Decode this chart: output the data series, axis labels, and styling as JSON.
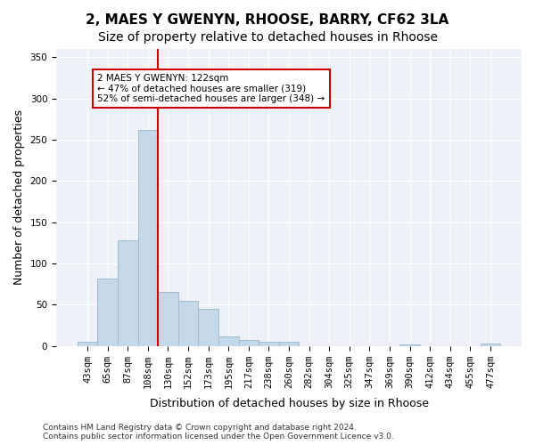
{
  "title1": "2, MAES Y GWENYN, RHOOSE, BARRY, CF62 3LA",
  "title2": "Size of property relative to detached houses in Rhoose",
  "xlabel": "Distribution of detached houses by size in Rhoose",
  "ylabel": "Number of detached properties",
  "categories": [
    "43sqm",
    "65sqm",
    "87sqm",
    "108sqm",
    "130sqm",
    "152sqm",
    "173sqm",
    "195sqm",
    "217sqm",
    "238sqm",
    "260sqm",
    "282sqm",
    "304sqm",
    "325sqm",
    "347sqm",
    "369sqm",
    "390sqm",
    "412sqm",
    "434sqm",
    "455sqm",
    "477sqm"
  ],
  "values": [
    5,
    82,
    128,
    262,
    65,
    55,
    45,
    12,
    7,
    5,
    5,
    0,
    0,
    0,
    0,
    0,
    2,
    0,
    0,
    0,
    3
  ],
  "bar_color": "#c5d8e8",
  "bar_edge_color": "#a0bcd0",
  "vline_x": 4,
  "vline_color": "#cc0000",
  "annotation_text": "2 MAES Y GWENYN: 122sqm\n← 47% of detached houses are smaller (319)\n52% of semi-detached houses are larger (348) →",
  "annotation_box_color": "#ffffff",
  "annotation_box_edge": "#cc0000",
  "ylim": [
    0,
    360
  ],
  "yticks": [
    0,
    50,
    100,
    150,
    200,
    250,
    300,
    350
  ],
  "footer": "Contains HM Land Registry data © Crown copyright and database right 2024.\nContains public sector information licensed under the Open Government Licence v3.0.",
  "bg_color": "#eef2f8",
  "plot_bg_color": "#eef2f8",
  "title1_fontsize": 11,
  "title2_fontsize": 10,
  "tick_fontsize": 7.5,
  "ylabel_fontsize": 9,
  "xlabel_fontsize": 9
}
